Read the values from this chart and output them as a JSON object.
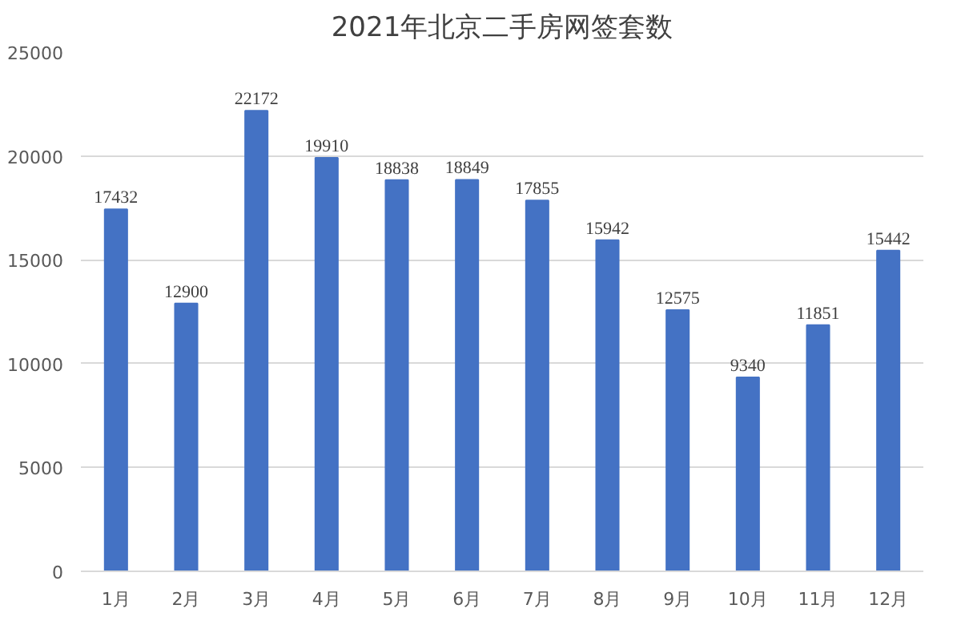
{
  "chart_data": {
    "type": "bar",
    "title": "2021年北京二手房网签套数",
    "categories": [
      "1月",
      "2月",
      "3月",
      "4月",
      "5月",
      "6月",
      "7月",
      "8月",
      "9月",
      "10月",
      "11月",
      "12月"
    ],
    "values": [
      17432,
      12900,
      22172,
      19910,
      18838,
      18849,
      17855,
      15942,
      12575,
      9340,
      11851,
      15442
    ],
    "color": "#4472c4",
    "ylim": [
      0,
      25000
    ],
    "yticks": [
      0,
      5000,
      10000,
      15000,
      20000,
      25000
    ],
    "grid": "y",
    "data_labels": true
  }
}
